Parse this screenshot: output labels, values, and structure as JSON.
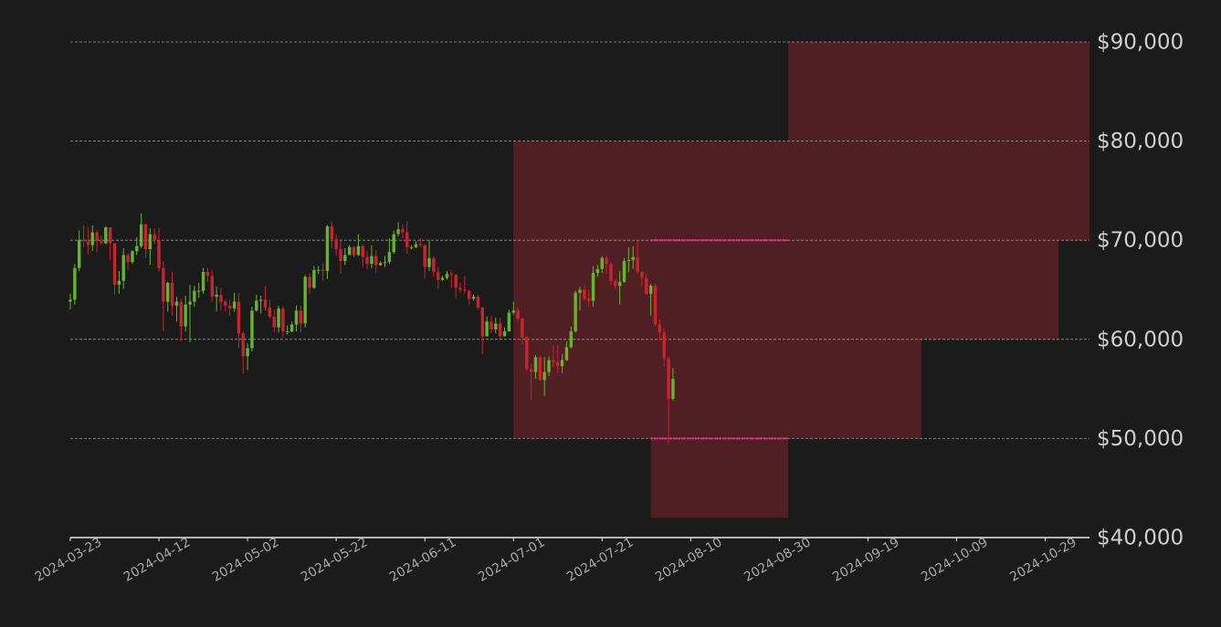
{
  "chart_data": {
    "type": "candlestick",
    "x": [
      "2024-03-23",
      "2024-03-24",
      "2024-03-25",
      "2024-03-26",
      "2024-03-27",
      "2024-03-28",
      "2024-03-29",
      "2024-03-30",
      "2024-03-31",
      "2024-04-01",
      "2024-04-02",
      "2024-04-03",
      "2024-04-04",
      "2024-04-05",
      "2024-04-06",
      "2024-04-07",
      "2024-04-08",
      "2024-04-09",
      "2024-04-10",
      "2024-04-11",
      "2024-04-12",
      "2024-04-13",
      "2024-04-14",
      "2024-04-15",
      "2024-04-16",
      "2024-04-17",
      "2024-04-18",
      "2024-04-19",
      "2024-04-20",
      "2024-04-21",
      "2024-04-22",
      "2024-04-23",
      "2024-04-24",
      "2024-04-25",
      "2024-04-26",
      "2024-04-27",
      "2024-04-28",
      "2024-04-29",
      "2024-04-30",
      "2024-05-01",
      "2024-05-02",
      "2024-05-03",
      "2024-05-04",
      "2024-05-05",
      "2024-05-06",
      "2024-05-07",
      "2024-05-08",
      "2024-05-09",
      "2024-05-10",
      "2024-05-11",
      "2024-05-12",
      "2024-05-13",
      "2024-05-14",
      "2024-05-15",
      "2024-05-16",
      "2024-05-17",
      "2024-05-18",
      "2024-05-19",
      "2024-05-20",
      "2024-05-21",
      "2024-05-22",
      "2024-05-23",
      "2024-05-24",
      "2024-05-25",
      "2024-05-26",
      "2024-05-27",
      "2024-05-28",
      "2024-05-29",
      "2024-05-30",
      "2024-05-31",
      "2024-06-01",
      "2024-06-02",
      "2024-06-03",
      "2024-06-04",
      "2024-06-05",
      "2024-06-06",
      "2024-06-07",
      "2024-06-08",
      "2024-06-09",
      "2024-06-10",
      "2024-06-11",
      "2024-06-12",
      "2024-06-13",
      "2024-06-14",
      "2024-06-15",
      "2024-06-16",
      "2024-06-17",
      "2024-06-18",
      "2024-06-19",
      "2024-06-20",
      "2024-06-21",
      "2024-06-22",
      "2024-06-23",
      "2024-06-24",
      "2024-06-25",
      "2024-06-26",
      "2024-06-27",
      "2024-06-28",
      "2024-06-29",
      "2024-06-30",
      "2024-07-01",
      "2024-07-02",
      "2024-07-03",
      "2024-07-04",
      "2024-07-05",
      "2024-07-06",
      "2024-07-07",
      "2024-07-08",
      "2024-07-09",
      "2024-07-10",
      "2024-07-11",
      "2024-07-12",
      "2024-07-13",
      "2024-07-14",
      "2024-07-15",
      "2024-07-16",
      "2024-07-17",
      "2024-07-18",
      "2024-07-19",
      "2024-07-20",
      "2024-07-21",
      "2024-07-22",
      "2024-07-23",
      "2024-07-24",
      "2024-07-25",
      "2024-07-26",
      "2024-07-27",
      "2024-07-28",
      "2024-07-29",
      "2024-07-30",
      "2024-07-31",
      "2024-08-01",
      "2024-08-02",
      "2024-08-03",
      "2024-08-04",
      "2024-08-05",
      "2024-08-06"
    ],
    "open": [
      63800,
      64000,
      67200,
      70000,
      69900,
      69500,
      70800,
      69900,
      69700,
      71300,
      69700,
      65500,
      65900,
      68500,
      67800,
      68900,
      69400,
      71600,
      69100,
      70600,
      70000,
      67200,
      63800,
      65700,
      63400,
      63800,
      61300,
      63500,
      63800,
      64900,
      64900,
      66800,
      66400,
      64300,
      64500,
      63800,
      63400,
      63100,
      63800,
      60600,
      58300,
      59100,
      62900,
      63900,
      64000,
      63200,
      62300,
      61200,
      63100,
      60800,
      60800,
      61500,
      62900,
      61600,
      66300,
      65200,
      67000,
      67000,
      66900,
      71400,
      70100,
      69100,
      67900,
      68500,
      69300,
      68500,
      69400,
      68300,
      67600,
      68400,
      67500,
      67700,
      67800,
      68800,
      70600,
      71100,
      70800,
      69300,
      69300,
      69600,
      69500,
      67300,
      68200,
      66800,
      66000,
      66200,
      66600,
      66500,
      65200,
      65000,
      64900,
      64100,
      64300,
      63200,
      60300,
      61800,
      61000,
      61600,
      60300,
      60800,
      62700,
      62900,
      62100,
      60200,
      57000,
      56700,
      58200,
      55900,
      56700,
      57900,
      57700,
      57300,
      57900,
      59200,
      60800,
      64700,
      65000,
      64100,
      63900,
      66700,
      67100,
      68200,
      67600,
      65900,
      65400,
      65800,
      67900,
      68000,
      68300,
      66800,
      66200,
      64600,
      65400,
      61500,
      60700,
      58100,
      54000
    ],
    "high": [
      64600,
      67600,
      71000,
      71500,
      71300,
      71500,
      71000,
      70500,
      71400,
      71300,
      69700,
      66900,
      69200,
      68700,
      69000,
      70300,
      72700,
      71700,
      71200,
      71200,
      71300,
      67900,
      65800,
      66800,
      64300,
      64100,
      64400,
      65500,
      65400,
      65700,
      67200,
      67200,
      67000,
      65300,
      65200,
      64000,
      64000,
      64700,
      64700,
      60800,
      59600,
      63300,
      64500,
      64400,
      65400,
      64000,
      63000,
      63400,
      63300,
      61400,
      61800,
      63400,
      63400,
      66500,
      66700,
      67400,
      67400,
      67700,
      71500,
      71900,
      70600,
      70000,
      69200,
      69500,
      69400,
      70600,
      69600,
      68900,
      69500,
      69000,
      67900,
      68400,
      70200,
      71000,
      71800,
      71600,
      71900,
      69500,
      69900,
      70200,
      69600,
      70000,
      68400,
      67300,
      66400,
      66900,
      67000,
      66600,
      65700,
      66400,
      65000,
      64500,
      64500,
      63300,
      62300,
      62400,
      62200,
      62200,
      61200,
      63000,
      63800,
      63200,
      62200,
      60400,
      57500,
      58400,
      58300,
      58200,
      58300,
      59400,
      59500,
      58500,
      59800,
      61300,
      64900,
      65300,
      65500,
      65000,
      67400,
      67500,
      68400,
      68400,
      67800,
      66100,
      66900,
      68200,
      69300,
      69400,
      70000,
      66900,
      66600,
      65600,
      65600,
      62000,
      61100,
      58200,
      57100
    ],
    "low": [
      63000,
      63500,
      66900,
      69300,
      68600,
      68900,
      68800,
      69500,
      69600,
      68000,
      64500,
      64600,
      65100,
      67000,
      67600,
      68500,
      69200,
      68200,
      67500,
      69600,
      66900,
      60800,
      62800,
      62400,
      61800,
      59800,
      60800,
      59700,
      63300,
      64200,
      64600,
      65800,
      63800,
      62800,
      62900,
      62800,
      62400,
      62800,
      59100,
      56600,
      56900,
      58800,
      62800,
      62600,
      62900,
      62100,
      60700,
      60700,
      60200,
      60500,
      60700,
      60800,
      60700,
      61200,
      64600,
      65100,
      66600,
      65900,
      66100,
      69200,
      68400,
      66600,
      67500,
      68500,
      68300,
      68400,
      67300,
      67100,
      67200,
      66700,
      67400,
      67300,
      67600,
      68600,
      70400,
      70200,
      68600,
      69100,
      69200,
      69300,
      66100,
      66900,
      66300,
      65100,
      65900,
      66000,
      65200,
      64100,
      64700,
      64600,
      63500,
      63900,
      63000,
      58500,
      60300,
      60600,
      60600,
      60100,
      60300,
      60800,
      62500,
      61800,
      59500,
      56800,
      53800,
      56000,
      55800,
      54300,
      56300,
      57200,
      56600,
      56600,
      57800,
      59100,
      60700,
      62900,
      63900,
      63300,
      63300,
      66300,
      66700,
      66600,
      65500,
      65100,
      63500,
      65700,
      66800,
      67100,
      66600,
      65400,
      64500,
      62400,
      61300,
      59900,
      57300,
      49500,
      53800
    ],
    "close": [
      64000,
      67200,
      70000,
      69900,
      69500,
      70800,
      69900,
      69700,
      71300,
      69700,
      65500,
      65900,
      68500,
      67800,
      68900,
      69400,
      71600,
      69100,
      70600,
      70000,
      67200,
      63800,
      65700,
      63400,
      63800,
      61300,
      63500,
      63800,
      64900,
      64900,
      66800,
      66400,
      64300,
      64500,
      63800,
      63400,
      63100,
      63800,
      60600,
      58300,
      59100,
      62900,
      63900,
      64000,
      63200,
      62300,
      61200,
      63100,
      60800,
      60800,
      61500,
      62900,
      61600,
      66300,
      65200,
      67000,
      67000,
      66900,
      71400,
      70100,
      69100,
      67900,
      68500,
      69300,
      68500,
      69400,
      68300,
      67600,
      68400,
      67500,
      67700,
      67800,
      68800,
      70600,
      71100,
      70800,
      69300,
      69300,
      69600,
      69500,
      67300,
      68200,
      66800,
      66000,
      66200,
      66600,
      66500,
      65200,
      65000,
      64900,
      64100,
      64300,
      63200,
      60300,
      61800,
      61000,
      61600,
      60300,
      60800,
      62700,
      62900,
      62100,
      60200,
      57000,
      56700,
      58200,
      55900,
      56700,
      57900,
      57700,
      57300,
      57900,
      59200,
      60800,
      64700,
      65000,
      64100,
      63900,
      66700,
      67100,
      68200,
      67600,
      65900,
      65400,
      65800,
      67900,
      68000,
      68300,
      66800,
      66200,
      64600,
      65400,
      61500,
      60700,
      58100,
      54000,
      56000
    ],
    "up_color": "#64b52c",
    "down_color": "#c9232f",
    "zones": [
      {
        "x": [
          "2024-07-01",
          "2024-10-01"
        ],
        "y": [
          50000,
          80000
        ]
      },
      {
        "x": [
          "2024-08-01",
          "2024-09-01"
        ],
        "y": [
          42000,
          50000
        ]
      },
      {
        "x": [
          "2024-07-01",
          "2024-11-01"
        ],
        "y": [
          60000,
          80000
        ]
      },
      {
        "x": [
          "2024-09-01",
          "2024-11-08"
        ],
        "y": [
          70000,
          90000
        ]
      }
    ],
    "zone_color": "#4f1f23",
    "levels": [
      {
        "x": [
          "2024-08-01",
          "2024-09-01"
        ],
        "y": 70000
      },
      {
        "x": [
          "2024-08-01",
          "2024-09-01"
        ],
        "y": 50000
      }
    ],
    "level_color": "#ff2aa6",
    "xlim": [
      "2024-03-23",
      "2024-11-08"
    ],
    "xticks": [
      "2024-03-23",
      "2024-04-12",
      "2024-05-02",
      "2024-05-22",
      "2024-06-11",
      "2024-07-01",
      "2024-07-21",
      "2024-08-10",
      "2024-08-30",
      "2024-09-19",
      "2024-10-09",
      "2024-10-29"
    ],
    "ylim": [
      40000,
      90000
    ],
    "yticks": [
      {
        "value": 40000,
        "label": "$40,000"
      },
      {
        "value": 50000,
        "label": "$50,000"
      },
      {
        "value": 60000,
        "label": "$60,000"
      },
      {
        "value": 70000,
        "label": "$70,000"
      },
      {
        "value": 80000,
        "label": "$80,000"
      },
      {
        "value": 90000,
        "label": "$90,000"
      }
    ],
    "grid": true
  }
}
